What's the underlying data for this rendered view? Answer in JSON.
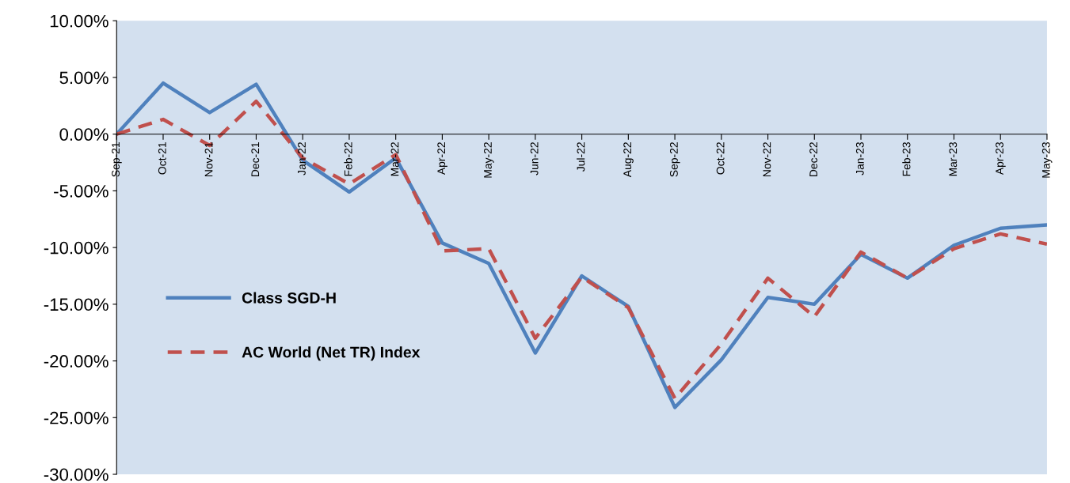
{
  "chart_data": {
    "type": "line",
    "categories": [
      "Sep-21",
      "Oct-21",
      "Nov-21",
      "Dec-21",
      "Jan-22",
      "Feb-22",
      "Mar-22",
      "Apr-22",
      "May-22",
      "Jun-22",
      "Jul-22",
      "Aug-22",
      "Sep-22",
      "Oct-22",
      "Nov-22",
      "Dec-22",
      "Jan-23",
      "Feb-23",
      "Mar-23",
      "Apr-23",
      "May-23"
    ],
    "series": [
      {
        "name": "Class SGD-H",
        "color": "#4f81bd",
        "line_style": "solid",
        "values": [
          0,
          4.5,
          1.9,
          4.4,
          -2.3,
          -5.1,
          -2.1,
          -9.6,
          -11.4,
          -19.3,
          -12.5,
          -15.2,
          -24.1,
          -19.9,
          -14.4,
          -15.0,
          -10.6,
          -12.7,
          -9.8,
          -8.3,
          -8.0
        ]
      },
      {
        "name": "AC World (Net TR) Index",
        "color": "#c0504d",
        "line_style": "dashed",
        "values": [
          0,
          1.3,
          -1.0,
          2.9,
          -2.1,
          -4.4,
          -1.8,
          -10.3,
          -10.1,
          -18.0,
          -12.6,
          -15.3,
          -23.3,
          -18.5,
          -12.7,
          -16.1,
          -10.4,
          -12.7,
          -10.1,
          -8.8,
          -9.7
        ]
      }
    ],
    "ylim": [
      -30,
      10
    ],
    "yticks": [
      {
        "value": -30,
        "label": "-30.00%"
      },
      {
        "value": -25,
        "label": "-25.00%"
      },
      {
        "value": -20,
        "label": "-20.00%"
      },
      {
        "value": -15,
        "label": "-15.00%"
      },
      {
        "value": -10,
        "label": "-10.00%"
      },
      {
        "value": -5,
        "label": "-5.00%"
      },
      {
        "value": 0,
        "label": "0.00%"
      },
      {
        "value": 5,
        "label": "5.00%"
      },
      {
        "value": 10,
        "label": "10.00%"
      }
    ],
    "grid": false,
    "legend": "left",
    "marker": "none"
  }
}
